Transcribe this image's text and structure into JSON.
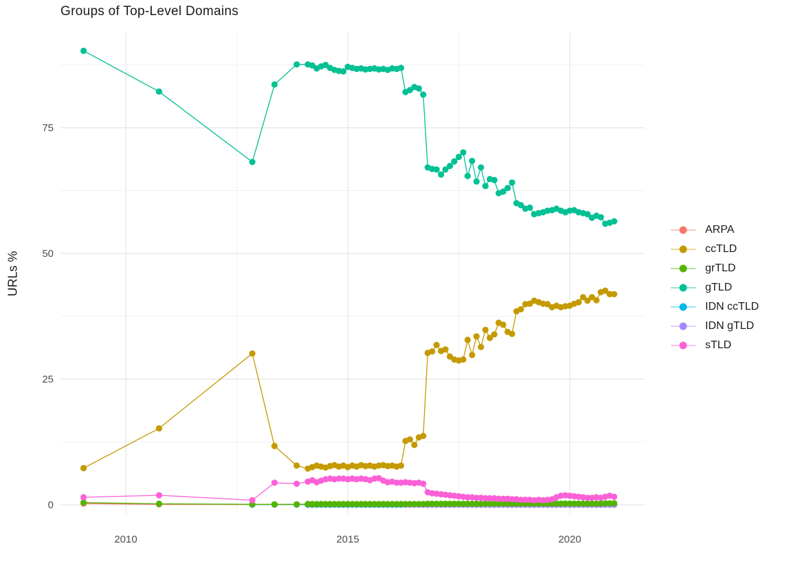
{
  "chart_data": {
    "type": "line",
    "title": "Groups of Top-Level Domains",
    "xlabel": "",
    "ylabel": "URLs %",
    "legend_position": "right",
    "grid": true,
    "background": "#ffffff",
    "grid_major_color": "#e4e4e4",
    "grid_minor_color": "#f2f2f2",
    "axes": {
      "x": {
        "ticks": [
          2010,
          2015,
          2020
        ],
        "tick_labels": [
          "2010",
          "2015",
          "2020"
        ],
        "minor_ticks": [
          2012.5,
          2017.5
        ],
        "range": [
          2008.5,
          2021.7
        ]
      },
      "y": {
        "ticks": [
          0,
          25,
          50,
          75
        ],
        "tick_labels": [
          "0",
          "25",
          "50",
          "75"
        ],
        "minor_ticks": [
          12.5,
          37.5,
          62.5,
          87.5
        ],
        "range": [
          -1.5,
          94
        ]
      }
    },
    "x": [
      2009.05,
      2010.75,
      2012.85,
      2013.35,
      2013.85,
      2014.1,
      2014.2,
      2014.3,
      2014.4,
      2014.5,
      2014.6,
      2014.7,
      2014.8,
      2014.9,
      2015.0,
      2015.1,
      2015.2,
      2015.3,
      2015.4,
      2015.5,
      2015.6,
      2015.7,
      2015.8,
      2015.9,
      2016.0,
      2016.1,
      2016.2,
      2016.3,
      2016.4,
      2016.5,
      2016.6,
      2016.7,
      2016.8,
      2016.9,
      2017.0,
      2017.1,
      2017.2,
      2017.3,
      2017.4,
      2017.5,
      2017.6,
      2017.7,
      2017.8,
      2017.9,
      2018.0,
      2018.1,
      2018.2,
      2018.3,
      2018.4,
      2018.5,
      2018.6,
      2018.7,
      2018.8,
      2018.9,
      2019.0,
      2019.1,
      2019.2,
      2019.3,
      2019.4,
      2019.5,
      2019.6,
      2019.7,
      2019.8,
      2019.9,
      2020.0,
      2020.1,
      2020.2,
      2020.3,
      2020.4,
      2020.5,
      2020.6,
      2020.7,
      2020.8,
      2020.9,
      2021.0
    ],
    "series": [
      {
        "name": "ARPA",
        "color": "#F8766D",
        "values": [
          0.25,
          0.1,
          0.05,
          0.05,
          0.05,
          0.02,
          0.02,
          0.02,
          0.02,
          0.02,
          0.02,
          0.02,
          0.02,
          0.02,
          0.02,
          0.02,
          0.02,
          0.02,
          0.02,
          0.02,
          0.02,
          0.02,
          0.02,
          0.02,
          0.02,
          0.02,
          0.02,
          0.02,
          0.02,
          0.02,
          0.02,
          0.02,
          0.02,
          0.02,
          0.02,
          0.02,
          0.02,
          0.02,
          0.02,
          0.02,
          0.02,
          0.02,
          0.02,
          0.02,
          0.02,
          0.02,
          0.02,
          0.02,
          0.02,
          0.02,
          0.02,
          0.02,
          0.02,
          0.02,
          0.02,
          0.02,
          0.02,
          0.02,
          0.02,
          0.02,
          0.02,
          0.02,
          0.02,
          0.02,
          0.02,
          0.02,
          0.02,
          0.02,
          0.02,
          0.02,
          0.02,
          0.02,
          0.02,
          0.02,
          0.02
        ]
      },
      {
        "name": "ccTLD",
        "color": "#C49A00",
        "values": [
          7.3,
          15.2,
          30.1,
          11.7,
          7.8,
          7.2,
          7.5,
          7.8,
          7.6,
          7.4,
          7.7,
          7.9,
          7.6,
          7.8,
          7.5,
          7.8,
          7.6,
          7.9,
          7.7,
          7.8,
          7.6,
          7.8,
          7.9,
          7.7,
          7.8,
          7.6,
          7.8,
          12.7,
          13.0,
          11.9,
          13.4,
          13.7,
          30.2,
          30.5,
          31.8,
          30.6,
          30.9,
          29.5,
          28.9,
          28.7,
          28.9,
          32.8,
          29.8,
          33.5,
          31.4,
          34.8,
          33.2,
          33.9,
          36.2,
          35.8,
          34.4,
          34.0,
          38.5,
          38.9,
          39.9,
          40.0,
          40.6,
          40.3,
          40.0,
          39.9,
          39.3,
          39.6,
          39.3,
          39.5,
          39.6,
          40.0,
          40.3,
          41.3,
          40.6,
          41.3,
          40.7,
          42.3,
          42.6,
          41.9,
          41.9
        ]
      },
      {
        "name": "grTLD",
        "color": "#53B400",
        "values": [
          0.45,
          0.2,
          0.1,
          0.1,
          0.1,
          0.15,
          0.15,
          0.15,
          0.15,
          0.15,
          0.15,
          0.15,
          0.15,
          0.15,
          0.15,
          0.15,
          0.15,
          0.15,
          0.15,
          0.15,
          0.15,
          0.15,
          0.15,
          0.15,
          0.15,
          0.15,
          0.15,
          0.15,
          0.15,
          0.15,
          0.15,
          0.15,
          0.2,
          0.2,
          0.2,
          0.2,
          0.2,
          0.2,
          0.2,
          0.2,
          0.2,
          0.2,
          0.2,
          0.2,
          0.2,
          0.25,
          0.25,
          0.25,
          0.25,
          0.25,
          0.25,
          0.25,
          0.25,
          0.25,
          0.25,
          0.25,
          0.25,
          0.25,
          0.25,
          0.25,
          0.25,
          0.25,
          0.25,
          0.25,
          0.25,
          0.25,
          0.25,
          0.25,
          0.25,
          0.25,
          0.25,
          0.25,
          0.3,
          0.3,
          0.3
        ]
      },
      {
        "name": "gTLD",
        "color": "#00C094",
        "values": [
          90.3,
          82.2,
          68.2,
          83.6,
          87.6,
          87.6,
          87.4,
          86.8,
          87.2,
          87.5,
          86.9,
          86.5,
          86.3,
          86.2,
          87.1,
          86.9,
          86.7,
          86.8,
          86.6,
          86.7,
          86.8,
          86.6,
          86.7,
          86.5,
          86.8,
          86.7,
          86.9,
          82.1,
          82.5,
          83.1,
          82.8,
          81.6,
          67.1,
          66.8,
          66.7,
          65.7,
          66.7,
          67.4,
          68.3,
          69.2,
          70.1,
          65.4,
          68.4,
          64.3,
          67.1,
          63.4,
          64.8,
          64.6,
          62.0,
          62.3,
          63.0,
          64.1,
          60.0,
          59.6,
          58.9,
          59.1,
          57.8,
          58.0,
          58.2,
          58.5,
          58.6,
          58.9,
          58.5,
          58.2,
          58.5,
          58.6,
          58.2,
          58.0,
          57.8,
          57.1,
          57.5,
          57.2,
          55.9,
          56.1,
          56.4
        ]
      },
      {
        "name": "IDN ccTLD",
        "color": "#00B6EB",
        "values": [
          null,
          null,
          0.05,
          0.05,
          0.05,
          0.05,
          0.05,
          0.05,
          0.05,
          0.05,
          0.05,
          0.05,
          0.05,
          0.05,
          0.05,
          0.05,
          0.05,
          0.05,
          0.05,
          0.05,
          0.05,
          0.05,
          0.05,
          0.05,
          0.05,
          0.05,
          0.05,
          0.05,
          0.05,
          0.05,
          0.05,
          0.05,
          0.05,
          0.05,
          0.05,
          0.05,
          0.05,
          0.05,
          0.05,
          0.05,
          0.05,
          0.05,
          0.05,
          0.05,
          0.05,
          0.05,
          0.05,
          0.05,
          0.05,
          0.05,
          0.05,
          0.05,
          0.05,
          0.05,
          0.05,
          0.05,
          0.05,
          0.05,
          0.05,
          0.05,
          0.05,
          0.05,
          0.05,
          0.05,
          0.05,
          0.05,
          0.05,
          0.05,
          0.05,
          0.05,
          0.05,
          0.05,
          0.05,
          0.05,
          0.05
        ]
      },
      {
        "name": "IDN gTLD",
        "color": "#A58AFF",
        "values": [
          null,
          null,
          null,
          null,
          null,
          null,
          null,
          null,
          null,
          null,
          null,
          null,
          null,
          null,
          null,
          null,
          null,
          null,
          null,
          null,
          null,
          null,
          null,
          null,
          null,
          null,
          null,
          0.05,
          0.05,
          0.05,
          0.05,
          0.05,
          0.05,
          0.05,
          0.05,
          0.05,
          0.05,
          0.05,
          0.05,
          0.05,
          0.05,
          0.05,
          0.05,
          0.05,
          0.05,
          0.05,
          0.05,
          0.05,
          0.05,
          0.05,
          0.05,
          0.05,
          0.05,
          0.05,
          0.05,
          0.05,
          0.05,
          0.05,
          0.05,
          0.05,
          0.05,
          0.05,
          0.05,
          0.05,
          0.05,
          0.05,
          0.05,
          0.05,
          0.05,
          0.05,
          0.05,
          0.05,
          0.05,
          0.05,
          0.05
        ]
      },
      {
        "name": "sTLD",
        "color": "#FB61D7",
        "values": [
          1.5,
          1.9,
          0.9,
          4.4,
          4.2,
          4.6,
          4.9,
          4.5,
          4.8,
          5.1,
          5.2,
          5.1,
          5.2,
          5.2,
          5.1,
          5.2,
          5.1,
          5.2,
          5.1,
          4.9,
          5.2,
          5.3,
          4.8,
          4.5,
          4.6,
          4.4,
          4.4,
          4.5,
          4.4,
          4.3,
          4.4,
          4.2,
          2.5,
          2.3,
          2.2,
          2.1,
          2.0,
          1.9,
          1.8,
          1.7,
          1.6,
          1.5,
          1.5,
          1.4,
          1.4,
          1.3,
          1.3,
          1.3,
          1.2,
          1.2,
          1.2,
          1.1,
          1.1,
          1.0,
          1.0,
          1.0,
          0.9,
          1.0,
          0.9,
          1.0,
          1.1,
          1.5,
          1.8,
          1.9,
          1.8,
          1.7,
          1.6,
          1.5,
          1.4,
          1.4,
          1.5,
          1.4,
          1.6,
          1.8,
          1.6
        ]
      }
    ],
    "legend": [
      "ARPA",
      "ccTLD",
      "grTLD",
      "gTLD",
      "IDN ccTLD",
      "IDN gTLD",
      "sTLD"
    ]
  }
}
